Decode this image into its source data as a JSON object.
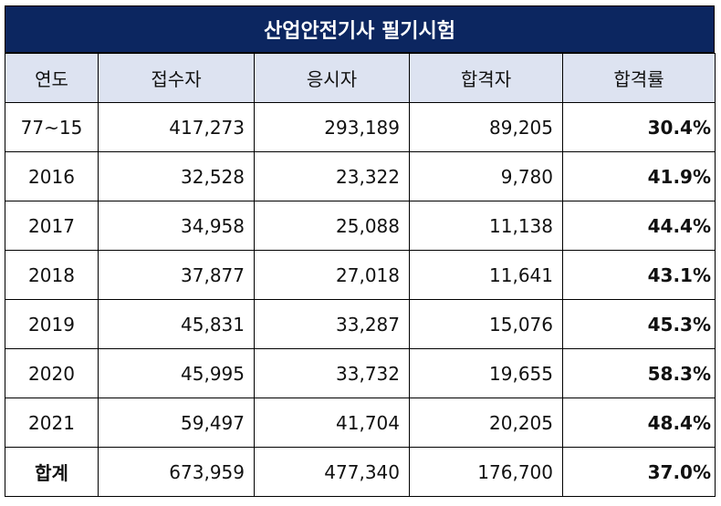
{
  "title": "산업안전기사 필기시험",
  "headers": [
    "연도",
    "접수자",
    "응시자",
    "합격자",
    "합격률"
  ],
  "rows": [
    [
      "77~15",
      "417,273",
      "293,189",
      "89,205",
      "30.4%"
    ],
    [
      "2016",
      "32,528",
      "23,322",
      "9,780",
      "41.9%"
    ],
    [
      "2017",
      "34,958",
      "25,088",
      "11,138",
      "44.4%"
    ],
    [
      "2018",
      "37,877",
      "27,018",
      "11,641",
      "43.1%"
    ],
    [
      "2019",
      "45,831",
      "33,287",
      "15,076",
      "45.3%"
    ],
    [
      "2020",
      "45,995",
      "33,732",
      "19,655",
      "58.3%"
    ],
    [
      "2021",
      "59,497",
      "41,704",
      "20,205",
      "48.4%"
    ],
    [
      "합계",
      "673,959",
      "477,340",
      "176,700",
      "37.0%"
    ]
  ],
  "colors": {
    "title_bg": "#0c2660",
    "header_bg": "#dde3f1"
  }
}
